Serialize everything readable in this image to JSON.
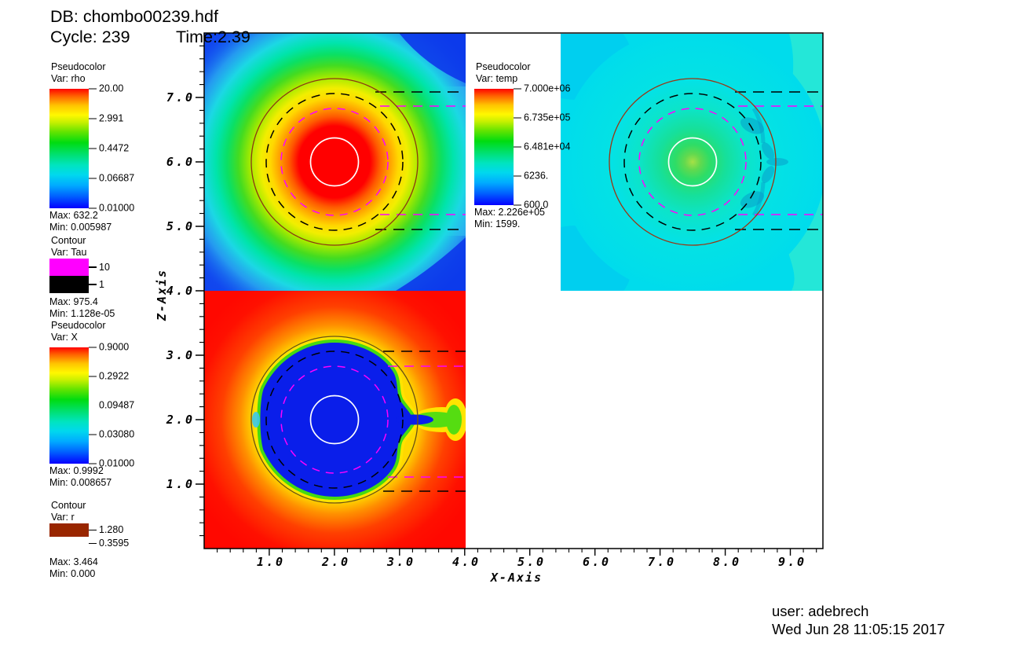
{
  "colors": {
    "magenta_contour": "#ff00ff",
    "black_contour": "#000000",
    "white_contour": "#ffffff",
    "brown_contour": "#992600",
    "rho_core": "#ff0000",
    "rho_background": "#1144ee",
    "temp_background": "#00dcec",
    "x_background": "#ff0800",
    "x_bubble": "#0a1eea"
  },
  "title": {
    "db": "DB: chombo00239.hdf",
    "cycle": "Cycle: 239",
    "time": "Time:2.39"
  },
  "legend_rho": {
    "heading": "Pseudocolor",
    "variable": "Var: rho",
    "ticks": [
      "20.00",
      "2.991",
      "0.4472",
      "0.06687",
      "0.01000"
    ],
    "max": "Max: 632.2",
    "min": "Min: 0.005987"
  },
  "legend_tau": {
    "heading": "Contour",
    "variable": "Var: Tau",
    "levels": [
      {
        "label": "10",
        "color": "#ff00ff"
      },
      {
        "label": "1",
        "color": "#000000"
      }
    ],
    "max": "Max: 975.4",
    "min": "Min: 1.128e-05"
  },
  "legend_X": {
    "heading": "Pseudocolor",
    "variable": "Var: X",
    "ticks": [
      "0.9000",
      "0.2922",
      "0.09487",
      "0.03080",
      "0.01000"
    ],
    "max": "Max: 0.9992",
    "min": "Min: 0.008657"
  },
  "legend_r": {
    "heading": "Contour",
    "variable": "Var: r",
    "levels": [
      {
        "label": "1.280",
        "color": "#992600"
      },
      {
        "label": "0.3595",
        "color": "#ffffff"
      }
    ],
    "max": "Max: 3.464",
    "min": "Min: 0.000"
  },
  "legend_temp": {
    "heading": "Pseudocolor",
    "variable": "Var: temp",
    "ticks": [
      "7.000e+06",
      "6.735e+05",
      "6.481e+04",
      "6236.",
      "600.0"
    ],
    "max": "Max: 2.226e+05",
    "min": "Min: 1599."
  },
  "axes": {
    "x_label": "X-Axis",
    "z_label": "Z-Axis",
    "x_ticks": [
      "1.0",
      "2.0",
      "3.0",
      "4.0",
      "5.0",
      "6.0",
      "7.0",
      "8.0",
      "9.0"
    ],
    "z_ticks": [
      "1.0",
      "2.0",
      "3.0",
      "4.0",
      "5.0",
      "6.0",
      "7.0"
    ]
  },
  "footer": {
    "user": "user: adebrech",
    "timestamp": "Wed Jun 28 11:05:15 2017"
  },
  "chart_data": {
    "type": "heatmap",
    "title": "DB: chombo00239.hdf",
    "cycle": 239,
    "time": 2.39,
    "xlabel": "X-Axis",
    "ylabel": "Z-Axis",
    "xlim": [
      0,
      9.5
    ],
    "ylim": [
      0,
      8
    ],
    "x_ticks": [
      1.0,
      2.0,
      3.0,
      4.0,
      5.0,
      6.0,
      7.0,
      8.0,
      9.0
    ],
    "z_ticks": [
      1.0,
      2.0,
      3.0,
      4.0,
      5.0,
      6.0,
      7.0
    ],
    "grid": false,
    "panels": [
      {
        "variable": "rho",
        "plot": "Pseudocolor",
        "extent_x": [
          0,
          4
        ],
        "extent_z": [
          4,
          8
        ],
        "blast_center": [
          2,
          6
        ],
        "palette": "rainbow-log",
        "scale_ticks": [
          20.0,
          2.991,
          0.4472,
          0.06687,
          0.01
        ],
        "max": 632.2,
        "min": 0.005987,
        "appearance": "blue background with rainbow radial rings and red core inside white circle"
      },
      {
        "variable": "temp",
        "plot": "Pseudocolor",
        "extent_x": [
          5.5,
          9.5
        ],
        "extent_z": [
          4,
          8
        ],
        "blast_center": [
          7.5,
          6
        ],
        "palette": "rainbow-log",
        "scale_ticks": [
          7000000,
          673500,
          64810,
          6236,
          600
        ],
        "max": 222600,
        "min": 1599,
        "appearance": "cyan background with green core glow and dark teal arcs, shock front near right edge"
      },
      {
        "variable": "X",
        "plot": "Pseudocolor",
        "extent_x": [
          0,
          4
        ],
        "extent_z": [
          0,
          4
        ],
        "blast_center": [
          2,
          2
        ],
        "palette": "rainbow-log",
        "scale_ticks": [
          0.9,
          0.2922,
          0.09487,
          0.0308,
          0.01
        ],
        "max": 0.9992,
        "min": 0.008657,
        "appearance": "red background with blue bubble rimmed green-yellow and a rightward jet at the equator"
      }
    ],
    "contours": [
      {
        "variable": "Tau",
        "levels": [
          10,
          1
        ],
        "colors": [
          "#ff00ff",
          "#000000"
        ],
        "max": 975.4,
        "min": 1.128e-05,
        "shape": "dashed circles around each blast center opening into horizontal dashed lines toward the right edge"
      },
      {
        "variable": "r",
        "levels": [
          1.28,
          0.3595
        ],
        "colors": [
          "#992600",
          "#ffffff"
        ],
        "max": 3.464,
        "min": 0.0,
        "shape": "solid brown circle r=1.28 and solid white circle r=0.3595 around each blast center"
      }
    ]
  }
}
